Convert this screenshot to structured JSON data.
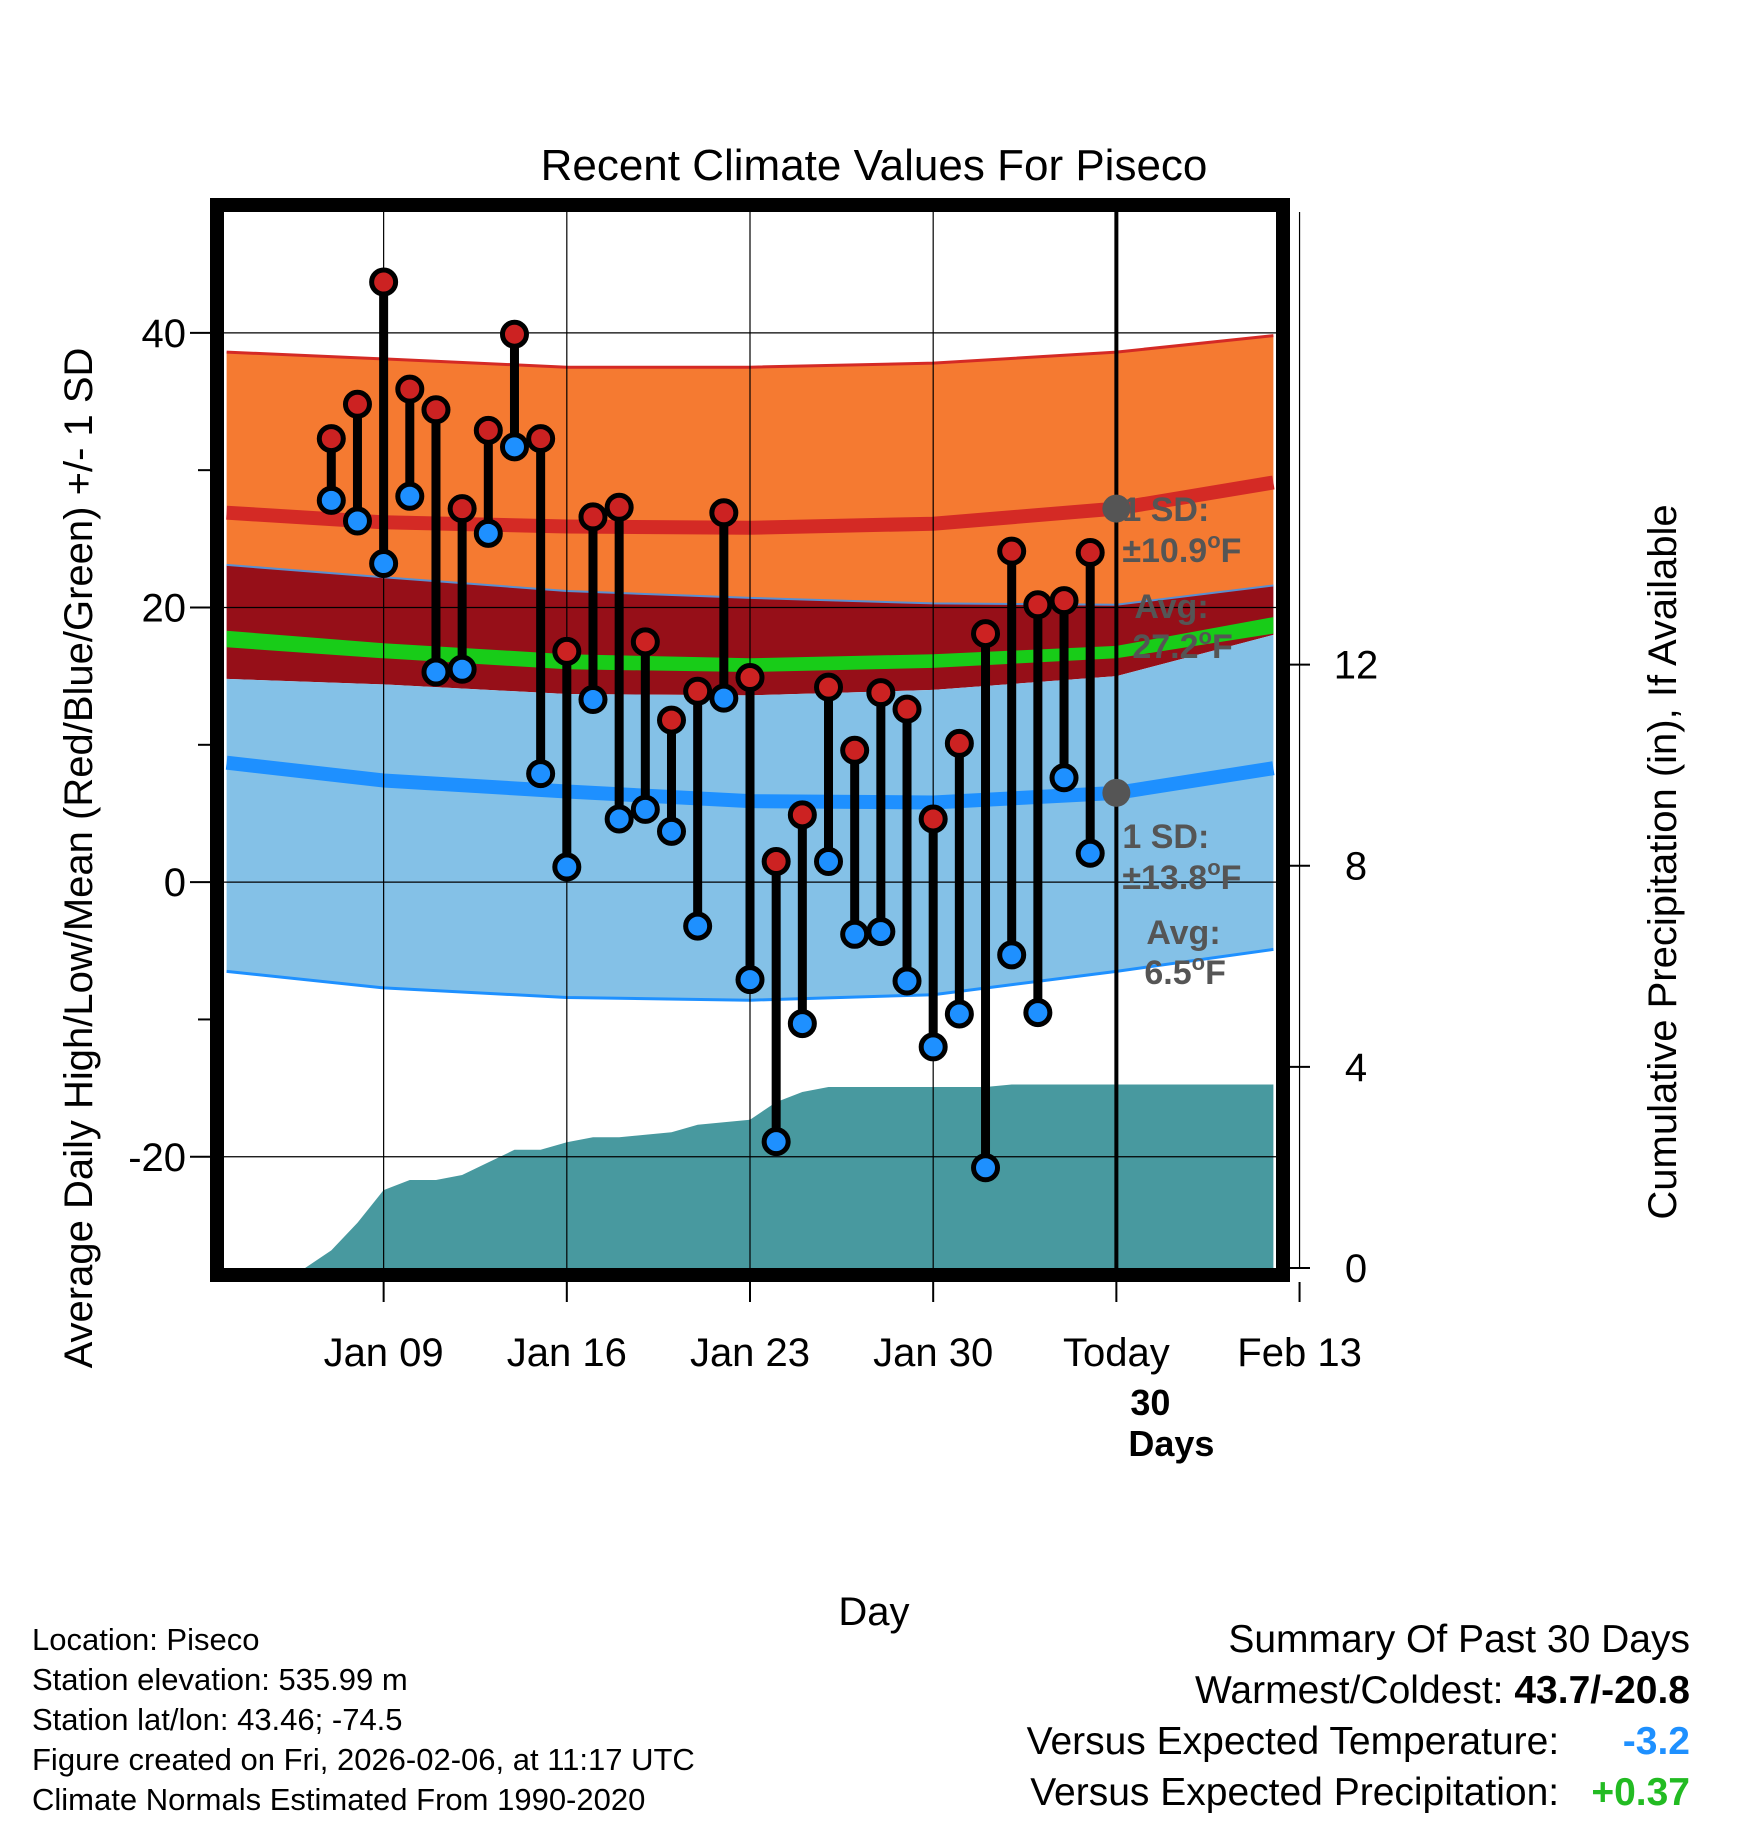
{
  "chart_data": {
    "type": "line",
    "title": "Recent Climate Values For Piseco",
    "xlabel": "Day",
    "ylabel": "Average Daily High/Low/Mean (Red/Blue/Green) +/- 1 SD",
    "y2label": "Cumulative Precipitation (in), If Available",
    "xlim": [
      -6.1,
      34.1
    ],
    "ylim": [
      -28.1,
      48.8
    ],
    "y2lim": [
      0,
      21
    ],
    "x_ticks": [
      {
        "x": 0,
        "label": "Jan 09"
      },
      {
        "x": 7,
        "label": "Jan 16"
      },
      {
        "x": 14,
        "label": "Jan 23"
      },
      {
        "x": 21,
        "label": "Jan 30"
      },
      {
        "x": 28,
        "label": "Today"
      },
      {
        "x": 35,
        "label": "Feb 13"
      }
    ],
    "y_ticks": [
      {
        "y": -20,
        "label": "-20"
      },
      {
        "y": 0,
        "label": "0"
      },
      {
        "y": 20,
        "label": "20"
      },
      {
        "y": 40,
        "label": "40"
      }
    ],
    "y_minor_ticks": [
      -10,
      10,
      30
    ],
    "y2_ticks": [
      {
        "y": 0,
        "label": "0"
      },
      {
        "y": 4,
        "label": "4"
      },
      {
        "y": 8,
        "label": "8"
      },
      {
        "y": 12,
        "label": "12"
      }
    ],
    "normals": {
      "x": [
        -6,
        0,
        7,
        14,
        21,
        28,
        34
      ],
      "high_upper": [
        38.6,
        38.1,
        37.5,
        37.5,
        37.8,
        38.6,
        39.8
      ],
      "high_avg": [
        26.9,
        26.2,
        25.9,
        25.8,
        26.1,
        27.2,
        29.1
      ],
      "high_lower": [
        23.1,
        22.2,
        21.2,
        20.7,
        20.3,
        20.2,
        21.6
      ],
      "mean_upper": [
        18.3,
        17.4,
        16.6,
        16.3,
        16.6,
        17.2,
        19.3
      ],
      "mean_lower": [
        17.1,
        16.3,
        15.5,
        15.3,
        15.6,
        16.3,
        18.1
      ],
      "low_upper": [
        14.8,
        14.4,
        13.7,
        13.6,
        14.0,
        15.0,
        18.0
      ],
      "low_avg": [
        8.7,
        7.4,
        6.6,
        5.9,
        5.8,
        6.5,
        8.3
      ],
      "low_lower": [
        -6.5,
        -7.7,
        -8.4,
        -8.6,
        -8.2,
        -6.5,
        -4.9
      ]
    },
    "series": [
      {
        "name": "High",
        "color": "#CC2222",
        "x": [
          -2,
          -1,
          0,
          1,
          2,
          3,
          4,
          5,
          6,
          7,
          8,
          9,
          10,
          11,
          12,
          13,
          14,
          15,
          16,
          17,
          18,
          19,
          20,
          21,
          22,
          23,
          24,
          25,
          26,
          27
        ],
        "values": [
          32.3,
          34.8,
          43.7,
          35.9,
          34.4,
          27.2,
          32.9,
          39.9,
          32.3,
          16.8,
          26.6,
          27.3,
          17.5,
          11.8,
          13.9,
          26.9,
          14.9,
          1.5,
          4.9,
          14.2,
          9.6,
          13.8,
          12.6,
          4.6,
          10.1,
          18.1,
          24.1,
          20.2,
          20.5,
          24.0
        ]
      },
      {
        "name": "Low",
        "color": "#1E90FF",
        "x": [
          -2,
          -1,
          0,
          1,
          2,
          3,
          4,
          5,
          6,
          7,
          8,
          9,
          10,
          11,
          12,
          13,
          14,
          15,
          16,
          17,
          18,
          19,
          20,
          21,
          22,
          23,
          24,
          25,
          26,
          27
        ],
        "values": [
          27.8,
          26.3,
          23.2,
          28.1,
          15.3,
          15.5,
          25.4,
          31.7,
          7.9,
          1.1,
          13.3,
          4.6,
          5.3,
          3.7,
          -3.2,
          13.4,
          -7.1,
          -18.9,
          -10.3,
          1.5,
          -3.8,
          -3.6,
          -7.2,
          -12.0,
          -9.6,
          -20.8,
          -5.3,
          -9.5,
          7.6,
          2.1
        ]
      },
      {
        "name": "Cumulative Precipitation",
        "color": "#48999F",
        "axis": "y2",
        "x": [
          -6,
          -3,
          -2,
          -1,
          0,
          1,
          2,
          3,
          4,
          5,
          6,
          7,
          8,
          9,
          10,
          11,
          12,
          13,
          14,
          15,
          16,
          17,
          18,
          19,
          20,
          21,
          22,
          23,
          24,
          25,
          26,
          27,
          28,
          34
        ],
        "values": [
          0,
          0,
          0.35,
          0.9,
          1.55,
          1.75,
          1.75,
          1.85,
          2.1,
          2.35,
          2.35,
          2.5,
          2.6,
          2.6,
          2.65,
          2.7,
          2.85,
          2.9,
          2.95,
          3.3,
          3.5,
          3.6,
          3.6,
          3.6,
          3.6,
          3.6,
          3.6,
          3.6,
          3.65,
          3.65,
          3.65,
          3.65,
          3.65,
          3.65
        ]
      }
    ],
    "annotations": {
      "high_sd_label": "1 SD:",
      "high_sd_value": "±10.9",
      "high_avg_label": "Avg:",
      "high_avg_value": "27.2",
      "low_sd_label": "1 SD:",
      "low_sd_value": "±13.8",
      "low_avg_label": "Avg:",
      "low_avg_value": "6.5",
      "degree_unit": "o",
      "temp_unit": "F",
      "days_count": "30",
      "days_word": "Days"
    },
    "today_x": 28,
    "today_marker_high": 27.2,
    "today_marker_low": 6.5,
    "colors": {
      "high_band": "#F57A31",
      "high_line": "#D42A25",
      "mid_band": "#960F18",
      "mean_band": "#18CC18",
      "low_band": "#84C1E7",
      "low_line": "#1E90FF",
      "precip": "#48999F",
      "marker": "#555555"
    }
  },
  "footer": {
    "location": "Location: Piseco",
    "elevation": "Station elevation: 535.99 m",
    "latlon": "Station lat/lon: 43.46; -74.5",
    "created": "Figure created on Fri, 2026-02-06, at 11:17 UTC",
    "normals": "Climate Normals Estimated From 1990-2020"
  },
  "summary": {
    "title": "Summary Of Past 30 Days",
    "warm_cold_label": "Warmest/Coldest:",
    "warm_cold_value": "43.7/-20.8",
    "temp_label": "Versus Expected Temperature:",
    "temp_value": "-3.2",
    "precip_label": "Versus Expected Precipitation:",
    "precip_value": "+0.37"
  }
}
